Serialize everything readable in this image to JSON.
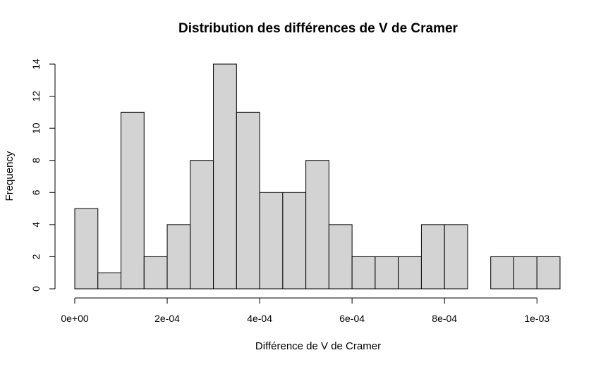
{
  "chart_data": {
    "type": "bar",
    "title": "Distribution des différences de V de Cramer",
    "xlabel": "Différence de V de Cramer",
    "ylabel": "Frequency",
    "bin_width": 5e-05,
    "bins": [
      {
        "start": 0.0,
        "end": 5e-05,
        "count": 5
      },
      {
        "start": 5e-05,
        "end": 0.0001,
        "count": 1
      },
      {
        "start": 0.0001,
        "end": 0.00015,
        "count": 11
      },
      {
        "start": 0.00015,
        "end": 0.0002,
        "count": 2
      },
      {
        "start": 0.0002,
        "end": 0.00025,
        "count": 4
      },
      {
        "start": 0.00025,
        "end": 0.0003,
        "count": 8
      },
      {
        "start": 0.0003,
        "end": 0.00035,
        "count": 14
      },
      {
        "start": 0.00035,
        "end": 0.0004,
        "count": 11
      },
      {
        "start": 0.0004,
        "end": 0.00045,
        "count": 6
      },
      {
        "start": 0.00045,
        "end": 0.0005,
        "count": 6
      },
      {
        "start": 0.0005,
        "end": 0.00055,
        "count": 8
      },
      {
        "start": 0.00055,
        "end": 0.0006,
        "count": 4
      },
      {
        "start": 0.0006,
        "end": 0.00065,
        "count": 2
      },
      {
        "start": 0.00065,
        "end": 0.0007,
        "count": 2
      },
      {
        "start": 0.0007,
        "end": 0.00075,
        "count": 2
      },
      {
        "start": 0.00075,
        "end": 0.0008,
        "count": 4
      },
      {
        "start": 0.0008,
        "end": 0.00085,
        "count": 4
      },
      {
        "start": 0.00085,
        "end": 0.0009,
        "count": 0
      },
      {
        "start": 0.0009,
        "end": 0.00095,
        "count": 2
      },
      {
        "start": 0.00095,
        "end": 0.001,
        "count": 2
      },
      {
        "start": 0.001,
        "end": 0.00105,
        "count": 2
      }
    ],
    "xlim": [
      0,
      0.00105
    ],
    "ylim": [
      0,
      14
    ],
    "x_ticks": [
      {
        "value": 0,
        "label": "0e+00"
      },
      {
        "value": 0.0002,
        "label": "2e-04"
      },
      {
        "value": 0.0004,
        "label": "4e-04"
      },
      {
        "value": 0.0006,
        "label": "6e-04"
      },
      {
        "value": 0.0008,
        "label": "8e-04"
      },
      {
        "value": 0.001,
        "label": "1e-03"
      }
    ],
    "y_ticks": [
      {
        "value": 0,
        "label": "0"
      },
      {
        "value": 2,
        "label": "2"
      },
      {
        "value": 4,
        "label": "4"
      },
      {
        "value": 6,
        "label": "6"
      },
      {
        "value": 8,
        "label": "8"
      },
      {
        "value": 10,
        "label": "10"
      },
      {
        "value": 12,
        "label": "12"
      },
      {
        "value": 14,
        "label": "14"
      }
    ],
    "grid": false,
    "bar_fill": "#d3d3d3",
    "bar_stroke": "#000000"
  }
}
